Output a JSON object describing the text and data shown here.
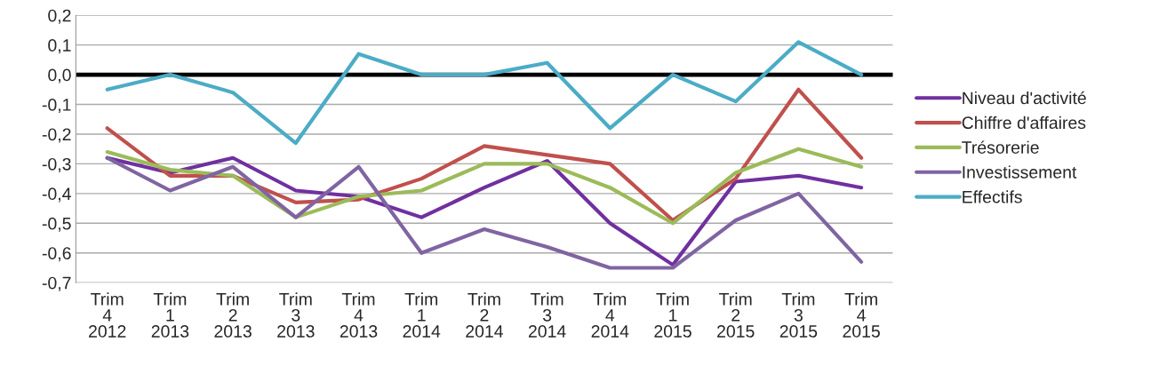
{
  "chart_data": {
    "type": "line",
    "categories": [
      "Trim\n4\n2012",
      "Trim\n1\n2013",
      "Trim\n2\n2013",
      "Trim\n3\n2013",
      "Trim\n4\n2013",
      "Trim\n1\n2014",
      "Trim\n2\n2014",
      "Trim\n3\n2014",
      "Trim\n4\n2014",
      "Trim\n1\n2015",
      "Trim\n2\n2015",
      "Trim\n3\n2015",
      "Trim\n4\n2015"
    ],
    "series": [
      {
        "name": "Niveau d'activité",
        "color": "#7030a0",
        "values": [
          -0.28,
          -0.33,
          -0.28,
          -0.39,
          -0.41,
          -0.48,
          -0.38,
          -0.29,
          -0.5,
          -0.64,
          -0.36,
          -0.34,
          -0.38
        ]
      },
      {
        "name": "Chiffre d'affaires",
        "color": "#c0504d",
        "values": [
          -0.18,
          -0.34,
          -0.34,
          -0.43,
          -0.42,
          -0.35,
          -0.24,
          -0.27,
          -0.3,
          -0.49,
          -0.35,
          -0.05,
          -0.28
        ]
      },
      {
        "name": "Trésorerie",
        "color": "#9bbb59",
        "values": [
          -0.26,
          -0.32,
          -0.34,
          -0.48,
          -0.41,
          -0.39,
          -0.3,
          -0.3,
          -0.38,
          -0.5,
          -0.33,
          -0.25,
          -0.31
        ]
      },
      {
        "name": "Investissement",
        "color": "#8064a2",
        "values": [
          -0.28,
          -0.39,
          -0.31,
          -0.48,
          -0.31,
          -0.6,
          -0.52,
          -0.58,
          -0.65,
          -0.65,
          -0.49,
          -0.4,
          -0.63
        ]
      },
      {
        "name": "Effectifs",
        "color": "#4bacc6",
        "values": [
          -0.05,
          0.0,
          -0.06,
          -0.23,
          0.07,
          0.0,
          0.0,
          0.04,
          -0.18,
          0.0,
          -0.09,
          0.11,
          0.0
        ]
      }
    ],
    "ylim": [
      -0.7,
      0.2
    ],
    "yticks": [
      {
        "value": 0.2,
        "label": "0,2"
      },
      {
        "value": 0.1,
        "label": "0,1"
      },
      {
        "value": 0.0,
        "label": "0,0"
      },
      {
        "value": -0.1,
        "label": "-0,1"
      },
      {
        "value": -0.2,
        "label": "-0,2"
      },
      {
        "value": -0.3,
        "label": "-0,3"
      },
      {
        "value": -0.4,
        "label": "-0,4"
      },
      {
        "value": -0.5,
        "label": "-0,5"
      },
      {
        "value": -0.6,
        "label": "-0,6"
      },
      {
        "value": -0.7,
        "label": "-0,7"
      }
    ],
    "ref_lines": [
      {
        "axis": "y",
        "value": 0.0,
        "color": "#000000"
      }
    ],
    "grid": "y",
    "legend": "right",
    "marker": "none",
    "line_style": "solid"
  }
}
